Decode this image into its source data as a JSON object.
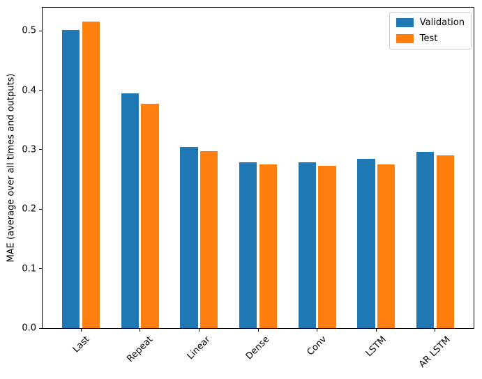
{
  "chart_data": {
    "type": "bar",
    "title": "",
    "xlabel": "",
    "ylabel": "MAE (average over all times and outputs)",
    "categories": [
      "Last",
      "Repeat",
      "Linear",
      "Dense",
      "Conv",
      "LSTM",
      "AR LSTM"
    ],
    "series": [
      {
        "name": "Validation",
        "color": "#1f77b4",
        "values": [
          0.501,
          0.395,
          0.305,
          0.279,
          0.279,
          0.285,
          0.297
        ]
      },
      {
        "name": "Test",
        "color": "#ff7f0e",
        "values": [
          0.515,
          0.377,
          0.298,
          0.275,
          0.273,
          0.275,
          0.291
        ]
      }
    ],
    "ylim": [
      0.0,
      0.539
    ],
    "yticks": [
      0.0,
      0.1,
      0.2,
      0.3,
      0.4,
      0.5
    ],
    "ytick_format_decimals": 1,
    "x_tick_rotation": 45,
    "grid": false,
    "legend_position": "upper right",
    "bar_group_width": 0.3,
    "bar_group_offset": 0.17
  }
}
